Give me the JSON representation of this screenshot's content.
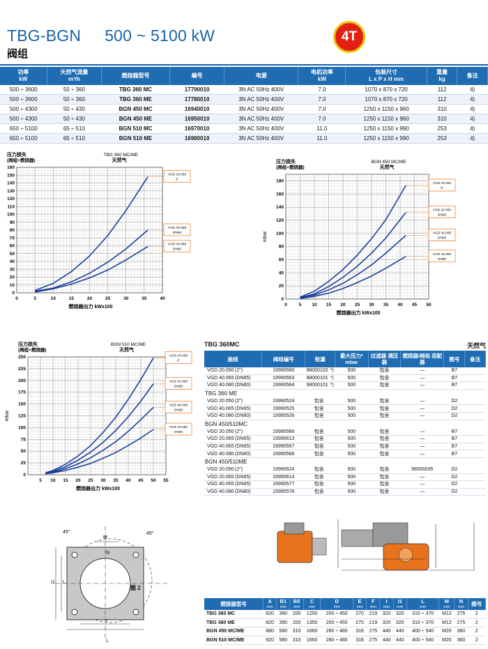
{
  "header": {
    "title_left": "TBG-BGN",
    "title_right": "500 ~ 5100 kW",
    "subtitle": "阀组",
    "badge": "4T"
  },
  "top_table": {
    "headers": [
      {
        "l1": "功率",
        "l2": "kW"
      },
      {
        "l1": "天然气流量",
        "l2": "m³/h"
      },
      {
        "l1": "燃烧器型号",
        "l2": ""
      },
      {
        "l1": "编号",
        "l2": ""
      },
      {
        "l1": "电源",
        "l2": ""
      },
      {
        "l1": "电机功率",
        "l2": "kW"
      },
      {
        "l1": "包装尺寸",
        "l2": "L x P x H  mm"
      },
      {
        "l1": "重量",
        "l2": "kg"
      },
      {
        "l1": "备注",
        "l2": ""
      }
    ],
    "rows": [
      [
        "500 ÷ 3600",
        "50 ÷ 360",
        "TBG 360 MC",
        "17790010",
        "3N AC 50Hz 400V",
        "7.0",
        "1070 x 870 x 720",
        "112",
        "4)"
      ],
      [
        "500 ÷ 3600",
        "50 ÷ 360",
        "TBG 360 ME",
        "17780010",
        "3N AC 50Hz 400V",
        "7.0",
        "1070 x 870 x 720",
        "112",
        "4)"
      ],
      [
        "500 ÷ 4300",
        "50 ÷ 430",
        "BGN 450 MC",
        "16940010",
        "3N AC 50Hz 400V",
        "7.0",
        "1250 x 1150 x 960",
        "310",
        "4)"
      ],
      [
        "500 ÷ 4300",
        "50 ÷ 430",
        "BGN 450 ME",
        "16950010",
        "3N AC 50Hz 400V",
        "7.0",
        "1250 x 1150 x 960",
        "310",
        "4)"
      ],
      [
        "650 ÷ 5100",
        "65 ÷ 510",
        "BGN 510 MC",
        "16970010",
        "3N AC 50Hz 400V",
        "11.0",
        "1250 x 1150 x 990",
        "253",
        "4)"
      ],
      [
        "650 ÷ 5100",
        "65 ÷ 510",
        "BGN 510 ME",
        "16980010",
        "3N AC 50Hz 400V",
        "11.0",
        "1250 x 1150 x 990",
        "253",
        "4)"
      ]
    ]
  },
  "chart_data": [
    {
      "type": "line",
      "title": "TBG 360 MC/ME",
      "subtitle": "天然气",
      "ylabel_line1": "压力损失",
      "ylabel_line2": "(阀组+燃烧器)",
      "xlabel": "燃烧器出力  kWx100",
      "xlim": [
        0,
        40
      ],
      "ylim": [
        0,
        160
      ],
      "xticks": [
        0,
        5,
        10,
        15,
        20,
        25,
        30,
        35,
        40
      ],
      "yticks": [
        0,
        10,
        20,
        30,
        40,
        50,
        60,
        70,
        80,
        90,
        100,
        110,
        120,
        130,
        140,
        150,
        160
      ],
      "color": "#1a3d99",
      "series": [
        {
          "name": "VGD 20.050 2\"",
          "x": [
            5,
            10,
            15,
            20,
            25,
            30,
            36
          ],
          "y": [
            3,
            12,
            27,
            47,
            73,
            105,
            148
          ]
        },
        {
          "name": "VGD 40.065 DN65",
          "x": [
            5,
            10,
            15,
            20,
            25,
            30,
            36
          ],
          "y": [
            2,
            6,
            14,
            25,
            39,
            56,
            80
          ]
        },
        {
          "name": "VGD 40.080 DN80",
          "x": [
            5,
            10,
            15,
            20,
            25,
            30,
            36
          ],
          "y": [
            1,
            5,
            11,
            19,
            29,
            42,
            59
          ]
        }
      ]
    },
    {
      "type": "line",
      "title": "BGN 450 MC/ME",
      "subtitle": "天然气",
      "ylabel_line1": "压力损失",
      "ylabel_line2": "(阀组+燃烧器)",
      "yunit": "mbar",
      "xlabel": "燃烧器出力  kWx100",
      "xlim": [
        0,
        50
      ],
      "ylim": [
        0,
        190
      ],
      "xticks": [
        0,
        5,
        10,
        15,
        20,
        25,
        30,
        35,
        40,
        45,
        50
      ],
      "yticks": [
        0,
        20,
        40,
        60,
        80,
        100,
        120,
        140,
        160,
        180
      ],
      "color": "#1a3d99",
      "series": [
        {
          "name": "VGD 20.050 2\"",
          "x": [
            5,
            10,
            15,
            20,
            25,
            30,
            35,
            42
          ],
          "y": [
            3,
            12,
            27,
            45,
            67,
            92,
            121,
            173
          ]
        },
        {
          "name": "VGD 20.050 DN65",
          "x": [
            5,
            10,
            15,
            20,
            25,
            30,
            35,
            42
          ],
          "y": [
            2,
            8,
            19,
            33,
            50,
            70,
            93,
            132
          ]
        },
        {
          "name": "VGD 40.065 DN65",
          "x": [
            5,
            10,
            15,
            20,
            25,
            30,
            35,
            42
          ],
          "y": [
            2,
            6,
            14,
            24,
            37,
            52,
            70,
            97
          ]
        },
        {
          "name": "VGD 40.080 DN80",
          "x": [
            5,
            10,
            15,
            20,
            25,
            30,
            35,
            42
          ],
          "y": [
            1,
            4,
            9,
            16,
            25,
            35,
            47,
            65
          ]
        }
      ]
    },
    {
      "type": "line",
      "title": "BGN 510 MC/ME",
      "subtitle": "天然气",
      "ylabel_line1": "压力损失",
      "ylabel_line2": "(阀组+燃烧器)",
      "yunit": "mbar",
      "xlabel": "燃烧器出力  kWx100",
      "xlim": [
        0,
        55
      ],
      "ylim": [
        0,
        250
      ],
      "xticks": [
        5,
        10,
        15,
        20,
        25,
        30,
        35,
        40,
        45,
        50,
        55
      ],
      "yticks": [
        0,
        25,
        50,
        75,
        100,
        125,
        150,
        175,
        200,
        225,
        250
      ],
      "color": "#1a3d99",
      "series": [
        {
          "name": "VGD 20.050 2\"",
          "x": [
            7,
            10,
            15,
            20,
            25,
            30,
            35,
            40,
            45,
            50
          ],
          "y": [
            4,
            9,
            22,
            40,
            62,
            90,
            122,
            160,
            202,
            248
          ]
        },
        {
          "name": "VGD 20.050 DN65",
          "x": [
            7,
            10,
            15,
            20,
            25,
            30,
            35,
            40,
            45,
            50
          ],
          "y": [
            3,
            7,
            17,
            31,
            48,
            69,
            94,
            123,
            156,
            193
          ]
        },
        {
          "name": "VGD 40.065 DN65",
          "x": [
            7,
            10,
            15,
            20,
            25,
            30,
            35,
            40,
            45,
            50
          ],
          "y": [
            2,
            5,
            13,
            23,
            36,
            52,
            70,
            92,
            117,
            143
          ]
        },
        {
          "name": "VGD 40.080 DN80",
          "x": [
            7,
            10,
            15,
            20,
            25,
            30,
            35,
            40,
            45,
            50
          ],
          "y": [
            2,
            4,
            9,
            16,
            24,
            35,
            47,
            62,
            78,
            96
          ]
        }
      ]
    }
  ],
  "parts_table": {
    "title": "TBG 360MC",
    "gas_label": "天然气",
    "headers": [
      "曲线",
      "阀组编号",
      "检漏",
      "最大压力*",
      "过滤器 调压器",
      "燃烧器/阀组 适配器",
      "图号",
      "备注"
    ],
    "max_pressure_unit": "mbar",
    "groups": [
      {
        "title": "",
        "rows": [
          [
            "VGD 20.050",
            "(2\")",
            "19990560",
            "98000102",
            "*)",
            "500",
            "包含",
            "—",
            "B7"
          ],
          [
            "VGD 40.065",
            "(DN65)",
            "19990563",
            "98000101",
            "*)",
            "500",
            "包含",
            "—",
            "B7"
          ],
          [
            "VGD 40.080",
            "(DN80)",
            "19990564",
            "98000101",
            "*)",
            "500",
            "包含",
            "—",
            "B7"
          ]
        ]
      },
      {
        "title": "TBG 360 ME",
        "rows": [
          [
            "VGD 20.050",
            "(2\")",
            "19990524",
            "包含",
            "",
            "500",
            "包含",
            "—",
            "D2"
          ],
          [
            "VGD 40.065",
            "(DN65)",
            "19990525",
            "包含",
            "",
            "500",
            "包含",
            "—",
            "D2"
          ],
          [
            "VGD 40.080",
            "(DN80)",
            "19990526",
            "包含",
            "",
            "500",
            "包含",
            "—",
            "D2"
          ]
        ]
      },
      {
        "title": "BGN 450/510MC",
        "rows": [
          [
            "VGD 20.050",
            "(2\")",
            "19990566",
            "包含",
            "",
            "500",
            "包含",
            "—",
            "B7"
          ],
          [
            "VGD 20.065",
            "(DN65)",
            "19990613",
            "包含",
            "",
            "500",
            "包含",
            "—",
            "B7"
          ],
          [
            "VGD 40.065",
            "(DN65)",
            "19990567",
            "包含",
            "",
            "500",
            "包含",
            "—",
            "B7"
          ],
          [
            "VGD 40.080",
            "(DN80)",
            "19990568",
            "包含",
            "",
            "500",
            "包含",
            "—",
            "B7"
          ]
        ]
      },
      {
        "title": "BGN 450/510ME",
        "rows": [
          [
            "VGD 20.050",
            "(2\")",
            "19990524",
            "包含",
            "",
            "500",
            "包含",
            "98000035",
            "D2"
          ],
          [
            "VGD 20.065",
            "(DN65)",
            "19990614",
            "包含",
            "",
            "500",
            "包含",
            "—",
            "D2"
          ],
          [
            "VGD 40.065",
            "(DN65)",
            "19990577",
            "包含",
            "",
            "500",
            "包含",
            "—",
            "D2"
          ],
          [
            "VGD 40.080",
            "(DN80)",
            "19990578",
            "包含",
            "",
            "500",
            "包含",
            "—",
            "D2"
          ]
        ]
      }
    ]
  },
  "drawing": {
    "fig_label": "图 2",
    "angle_label_1": "45°",
    "angle_label_2": "45°"
  },
  "dim_table": {
    "headers": [
      {
        "l1": "燃烧器型号",
        "l2": ""
      },
      {
        "l1": "A",
        "l2": "mm"
      },
      {
        "l1": "B1",
        "l2": "mm"
      },
      {
        "l1": "B5",
        "l2": "mm"
      },
      {
        "l1": "C",
        "l2": "mm"
      },
      {
        "l1": "D",
        "l2": "mm"
      },
      {
        "l1": "E",
        "l2": "mm"
      },
      {
        "l1": "F",
        "l2": "mm"
      },
      {
        "l1": "I",
        "l2": "mm"
      },
      {
        "l1": "I1",
        "l2": "mm"
      },
      {
        "l1": "L",
        "l2": "mm"
      },
      {
        "l1": "M",
        "l2": "mm"
      },
      {
        "l1": "N",
        "l2": "mm"
      },
      {
        "l1": "图号",
        "l2": ""
      }
    ],
    "rows": [
      [
        "TBG 360 MC",
        "820",
        "390",
        "200",
        "1250",
        "200 ÷ 450",
        "270",
        "219",
        "320",
        "320",
        "310 ÷ 370",
        "M12",
        "275",
        "2"
      ],
      [
        "TBG 360 ME",
        "820",
        "390",
        "200",
        "1350",
        "200 ÷ 450",
        "270",
        "219",
        "320",
        "320",
        "310 ÷ 370",
        "M12",
        "275",
        "2"
      ],
      [
        "BGN 450 MC/ME",
        "880",
        "580",
        "310",
        "1660",
        "280 ÷ 480",
        "316",
        "275",
        "440",
        "440",
        "400 ÷ 540",
        "M20",
        "360",
        "2"
      ],
      [
        "BGN 510 MC/ME",
        "920",
        "580",
        "310",
        "1660",
        "280 ÷ 480",
        "316",
        "275",
        "440",
        "440",
        "400 ÷ 540",
        "M20",
        "360",
        "2"
      ]
    ]
  }
}
